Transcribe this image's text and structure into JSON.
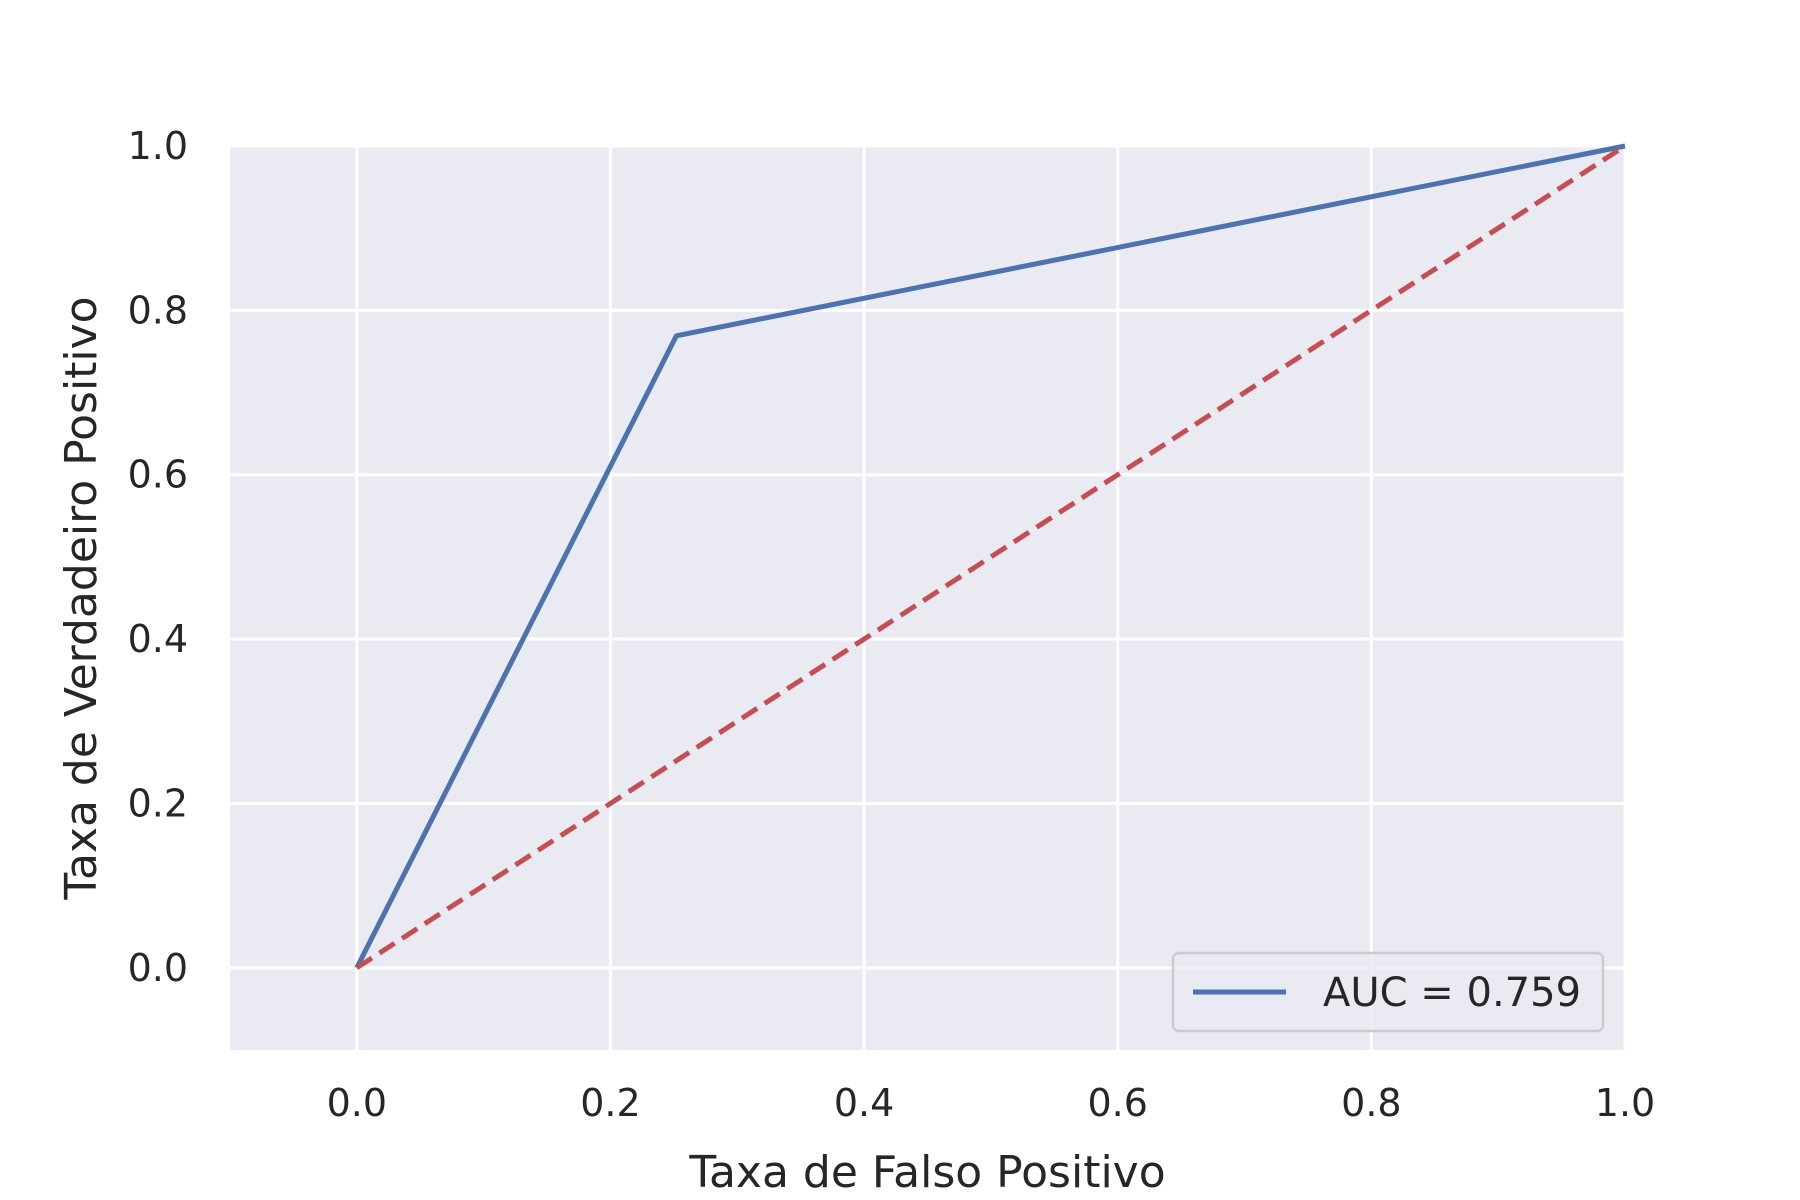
{
  "chart_data": {
    "type": "line",
    "xlabel": "Taxa de Falso Positivo",
    "ylabel": "Taxa de Verdadeiro Positivo",
    "xlim": [
      -0.1,
      1.0
    ],
    "ylim": [
      -0.1,
      1.0
    ],
    "xticks": [
      "0.0",
      "0.2",
      "0.4",
      "0.6",
      "0.8",
      "1.0"
    ],
    "yticks": [
      "0.0",
      "0.2",
      "0.4",
      "0.6",
      "0.8",
      "1.0"
    ],
    "grid": true,
    "legend_position": "lower-right",
    "series": [
      {
        "name": "AUC = 0.759",
        "x": [
          0.0,
          0.252,
          1.0
        ],
        "y": [
          0.0,
          0.769,
          1.0
        ],
        "color": "#4c72b0",
        "style": "solid"
      },
      {
        "x": [
          0.0,
          1.0
        ],
        "y": [
          0.0,
          1.0
        ],
        "color": "#c44e52",
        "style": "dashed"
      }
    ],
    "colors": {
      "plot_background": "#eaeaf2",
      "grid": "#ffffff",
      "text": "#262626"
    }
  }
}
